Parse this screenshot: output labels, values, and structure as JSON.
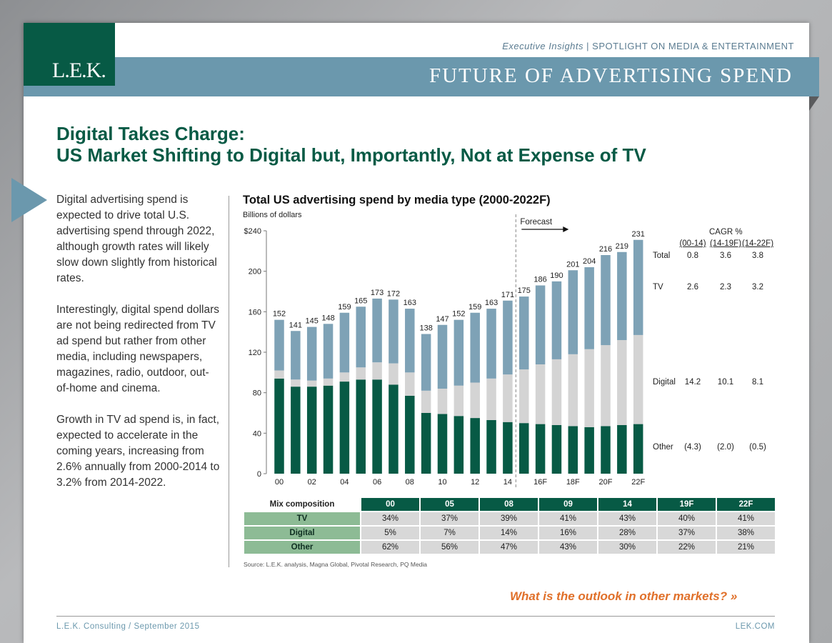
{
  "header": {
    "logo_text": "L.E.K.",
    "series_label": "Executive Insights",
    "separator": "|",
    "spotlight": "SPOTLIGHT ON MEDIA & ENTERTAINMENT",
    "banner_title": "FUTURE OF ADVERTISING SPEND"
  },
  "headline": {
    "line1": "Digital Takes Charge:",
    "line2": "US Market Shifting to Digital but, Importantly, Not at Expense of TV"
  },
  "body": {
    "p1": "Digital advertising spend is expected to drive total U.S. advertising spend through 2022, although growth rates will likely slow down slightly from historical rates.",
    "p2": "Interestingly, digital spend dollars are not being redirected from TV ad spend but rather from other media, including newspapers, magazines, radio, outdoor, out-of-home and cinema.",
    "p3": "Growth in TV ad spend is, in fact, expected to accelerate in the coming years, increasing from 2.6% annually from 2000-2014 to 3.2% from 2014-2022."
  },
  "chart_data": {
    "type": "bar",
    "stacked": true,
    "title": "Total US advertising spend by media type (2000-2022F)",
    "ylabel": "Billions of dollars",
    "ylim": [
      0,
      240
    ],
    "yticks": [
      "0",
      "40",
      "80",
      "120",
      "160",
      "200",
      "$240"
    ],
    "years": [
      "00",
      "01",
      "02",
      "03",
      "04",
      "05",
      "06",
      "07",
      "08",
      "09",
      "10",
      "11",
      "12",
      "13",
      "14",
      "15F",
      "16F",
      "17F",
      "18F",
      "19F",
      "20F",
      "21F",
      "22F"
    ],
    "tick_labels": [
      "00",
      "02",
      "04",
      "06",
      "08",
      "10",
      "12",
      "14",
      "16F",
      "18F",
      "20F",
      "22F"
    ],
    "forecast_label": "Forecast",
    "totals": [
      152,
      141,
      145,
      148,
      159,
      165,
      173,
      172,
      163,
      138,
      147,
      152,
      159,
      163,
      171,
      175,
      186,
      190,
      201,
      204,
      216,
      219,
      231
    ],
    "series": [
      {
        "name": "Other",
        "color": "#075a45",
        "values": [
          94,
          86,
          86,
          87,
          91,
          93,
          93,
          88,
          77,
          60,
          59,
          57,
          55,
          53,
          51,
          50,
          49,
          48,
          47,
          46,
          47,
          48,
          49
        ]
      },
      {
        "name": "Digital",
        "color": "#d4d4d4",
        "values": [
          8,
          7,
          6,
          7,
          9,
          12,
          17,
          21,
          23,
          22,
          25,
          30,
          35,
          41,
          47,
          53,
          59,
          65,
          71,
          77,
          80,
          84,
          88
        ]
      },
      {
        "name": "TV",
        "color": "#7ea2b6",
        "values": [
          50,
          48,
          53,
          54,
          59,
          60,
          63,
          63,
          63,
          56,
          63,
          65,
          69,
          69,
          73,
          72,
          78,
          77,
          83,
          81,
          89,
          87,
          94
        ]
      }
    ],
    "cagr_table": {
      "title": "CAGR %",
      "columns": [
        "(00-14)",
        "(14-19F)",
        "(14-22F)"
      ],
      "rows": [
        {
          "label": "Total",
          "values": [
            "0.8",
            "3.6",
            "3.8"
          ]
        },
        {
          "label": "TV",
          "values": [
            "2.6",
            "2.3",
            "3.2"
          ]
        },
        {
          "label": "Digital",
          "values": [
            "14.2",
            "10.1",
            "8.1"
          ]
        },
        {
          "label": "Other",
          "values": [
            "(4.3)",
            "(2.0)",
            "(0.5)"
          ]
        }
      ]
    }
  },
  "mix_table": {
    "header_label": "Mix composition",
    "columns": [
      "00",
      "05",
      "08",
      "09",
      "14",
      "19F",
      "22F"
    ],
    "rows": [
      {
        "label": "TV",
        "values": [
          "34%",
          "37%",
          "39%",
          "41%",
          "43%",
          "40%",
          "41%"
        ]
      },
      {
        "label": "Digital",
        "values": [
          "5%",
          "7%",
          "14%",
          "16%",
          "28%",
          "37%",
          "38%"
        ]
      },
      {
        "label": "Other",
        "values": [
          "62%",
          "56%",
          "47%",
          "43%",
          "30%",
          "22%",
          "21%"
        ]
      }
    ]
  },
  "source": "Source: L.E.K. analysis, Magna Global, Pivotal Research, PQ Media",
  "cta": {
    "label": "What is the outlook in other markets?",
    "arrow": "»"
  },
  "footer": {
    "left": "L.E.K. Consulting / September 2015",
    "right": "LEK.COM"
  },
  "colors": {
    "brand_green": "#075a45",
    "band_blue": "#6b98ad",
    "cta_orange": "#e0702a",
    "label_green": "#8dbb95"
  }
}
